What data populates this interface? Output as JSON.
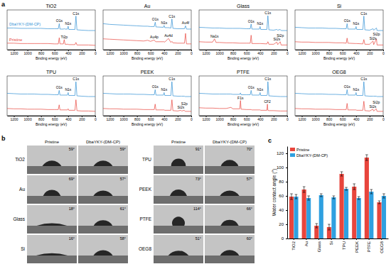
{
  "panel_labels": [
    "a",
    "b",
    "c"
  ],
  "chart_data": [
    {
      "type": "line",
      "title": "TiO2",
      "x_label": "Binding energy (eV)",
      "xlim": [
        1300,
        0
      ],
      "ylim": [
        0,
        110
      ],
      "xticks": [
        1200,
        1000,
        800,
        600,
        400,
        200,
        0
      ],
      "tick_labels": "x",
      "x": [
        1300,
        1200,
        1100,
        1000,
        900,
        800,
        700,
        600,
        545,
        531,
        520,
        470,
        458,
        445,
        410,
        400,
        390,
        300,
        285,
        270,
        200,
        100,
        0
      ],
      "series": [
        {
          "name": "DbaYKY-(DM-CP)",
          "color": "#2f8fd4",
          "values": [
            60,
            60,
            59,
            59,
            59,
            59,
            58,
            58,
            58,
            72,
            57,
            57,
            58,
            57,
            57,
            65,
            56,
            56,
            93,
            55,
            54,
            53,
            53
          ]
        },
        {
          "name": "Pristine",
          "color": "#e8453c",
          "values": [
            18,
            18,
            17,
            17,
            17,
            17,
            17,
            16,
            16,
            33,
            16,
            16,
            28,
            15,
            15,
            15,
            14,
            14,
            20,
            13,
            13,
            13,
            12
          ]
        }
      ],
      "annotations": [
        {
          "text": "O1s",
          "x": 531,
          "series": 0
        },
        {
          "text": "N1s",
          "x": 400,
          "series": 0
        },
        {
          "text": "C1s",
          "x": 285,
          "series": 0
        },
        {
          "text": "Ti2p",
          "x": 458,
          "series": 1
        }
      ]
    },
    {
      "type": "line",
      "title": "Au",
      "x_label": "Binding energy (eV)",
      "xlim": [
        1300,
        0
      ],
      "ylim": [
        0,
        110
      ],
      "xticks": [
        1200,
        1000,
        800,
        600,
        400,
        200,
        0
      ],
      "tick_labels": "x",
      "x": [
        1300,
        1200,
        1100,
        1000,
        900,
        800,
        700,
        645,
        600,
        546,
        531,
        520,
        410,
        400,
        390,
        353,
        335,
        300,
        285,
        270,
        200,
        100,
        84,
        70,
        0
      ],
      "series": [
        {
          "color": "#2f8fd4",
          "values": [
            72,
            70,
            69,
            68,
            67,
            66,
            65,
            65,
            64,
            64,
            76,
            63,
            62,
            67,
            61,
            61,
            61,
            60,
            85,
            59,
            58,
            58,
            66,
            57,
            57
          ]
        },
        {
          "color": "#e8453c",
          "values": [
            30,
            29,
            28,
            27,
            26,
            25,
            24,
            26,
            23,
            27,
            23,
            22,
            22,
            22,
            21,
            28,
            31,
            20,
            23,
            19,
            18,
            18,
            45,
            16,
            16
          ]
        }
      ],
      "annotations": [
        {
          "text": "O1s",
          "x": 531,
          "series": 0
        },
        {
          "text": "N1s",
          "x": 400,
          "series": 0
        },
        {
          "text": "C1s",
          "x": 285,
          "series": 0
        },
        {
          "text": "Au4f",
          "x": 84,
          "series": 0
        },
        {
          "text": "Au4p",
          "x": 546,
          "series": 1
        },
        {
          "text": "Au4d",
          "x": 335,
          "series": 1
        }
      ]
    },
    {
      "type": "line",
      "title": "Glass",
      "x_label": "Binding energy (eV)",
      "xlim": [
        1300,
        0
      ],
      "ylim": [
        0,
        110
      ],
      "xticks": [
        1200,
        1000,
        800,
        600,
        400,
        200,
        0
      ],
      "tick_labels": "x",
      "x": [
        1300,
        1200,
        1100,
        1072,
        1050,
        1000,
        900,
        800,
        700,
        600,
        545,
        532,
        520,
        410,
        400,
        390,
        300,
        285,
        270,
        200,
        153,
        140,
        103,
        90,
        0
      ],
      "series": [
        {
          "color": "#2f8fd4",
          "values": [
            62,
            61,
            60,
            60,
            60,
            60,
            59,
            59,
            59,
            58,
            58,
            71,
            57,
            57,
            64,
            56,
            56,
            94,
            55,
            54,
            56,
            54,
            56,
            53,
            53
          ]
        },
        {
          "color": "#e8453c",
          "values": [
            22,
            21,
            21,
            30,
            20,
            20,
            19,
            19,
            18,
            18,
            18,
            40,
            17,
            17,
            17,
            17,
            16,
            22,
            15,
            15,
            21,
            14,
            22,
            13,
            13
          ]
        }
      ],
      "annotations": [
        {
          "text": "O1s",
          "x": 532,
          "series": 0
        },
        {
          "text": "N1s",
          "x": 400,
          "series": 0
        },
        {
          "text": "C1s",
          "x": 285,
          "series": 0
        },
        {
          "text": "Na1s",
          "x": 1072,
          "series": 1
        },
        {
          "text": "Si2s",
          "x": 153,
          "series": 1
        },
        {
          "text": "Si2p",
          "x": 103,
          "series": 1
        }
      ]
    },
    {
      "type": "line",
      "title": "Si",
      "x_label": "Binding energy (eV)",
      "xlim": [
        1300,
        0
      ],
      "ylim": [
        0,
        110
      ],
      "xticks": [
        1200,
        1000,
        800,
        600,
        400,
        200,
        0
      ],
      "tick_labels": "x",
      "x": [
        1300,
        1200,
        1100,
        1000,
        900,
        800,
        700,
        600,
        545,
        532,
        520,
        410,
        400,
        390,
        300,
        285,
        270,
        200,
        150,
        140,
        99,
        90,
        0
      ],
      "series": [
        {
          "color": "#2f8fd4",
          "values": [
            62,
            61,
            60,
            60,
            60,
            59,
            59,
            58,
            58,
            72,
            57,
            57,
            64,
            56,
            56,
            93,
            55,
            54,
            58,
            54,
            60,
            53,
            53
          ]
        },
        {
          "color": "#e8453c",
          "values": [
            22,
            21,
            21,
            20,
            20,
            20,
            19,
            19,
            18,
            32,
            18,
            17,
            17,
            17,
            16,
            28,
            15,
            15,
            24,
            14,
            30,
            13,
            13
          ]
        }
      ],
      "annotations": [
        {
          "text": "O1s",
          "x": 532,
          "series": 0
        },
        {
          "text": "N1s",
          "x": 400,
          "series": 0
        },
        {
          "text": "C1s",
          "x": 285,
          "series": 0
        },
        {
          "text": "Si2s",
          "x": 150,
          "series": 1
        },
        {
          "text": "Si2p",
          "x": 99,
          "series": 1
        }
      ]
    },
    {
      "type": "line",
      "title": "TPU",
      "x_label": "Binding energy (eV)",
      "xlim": [
        1300,
        0
      ],
      "ylim": [
        0,
        110
      ],
      "xticks": [
        1200,
        1000,
        800,
        600,
        400,
        200,
        0
      ],
      "tick_labels": "x",
      "x": [
        1300,
        1200,
        1100,
        1000,
        900,
        800,
        700,
        600,
        545,
        532,
        520,
        410,
        400,
        390,
        300,
        285,
        270,
        200,
        100,
        0
      ],
      "series": [
        {
          "color": "#2f8fd4",
          "values": [
            62,
            61,
            60,
            60,
            60,
            59,
            59,
            58,
            58,
            70,
            57,
            57,
            64,
            56,
            56,
            94,
            55,
            54,
            53,
            53
          ]
        },
        {
          "color": "#e8453c",
          "values": [
            20,
            19,
            19,
            18,
            18,
            18,
            17,
            17,
            17,
            30,
            16,
            16,
            19,
            15,
            15,
            44,
            14,
            13,
            13,
            12
          ]
        }
      ],
      "annotations": [
        {
          "text": "O1s",
          "x": 532,
          "series": 0
        },
        {
          "text": "N1s",
          "x": 400,
          "series": 0
        },
        {
          "text": "C1s",
          "x": 285,
          "series": 0
        }
      ]
    },
    {
      "type": "line",
      "title": "PEEK",
      "x_label": "Binding energy (eV)",
      "xlim": [
        1300,
        0
      ],
      "ylim": [
        0,
        110
      ],
      "xticks": [
        1200,
        1000,
        800,
        600,
        400,
        200,
        0
      ],
      "tick_labels": "x",
      "x": [
        1300,
        1200,
        1100,
        1000,
        900,
        800,
        700,
        600,
        545,
        532,
        520,
        410,
        400,
        390,
        300,
        285,
        270,
        200,
        153,
        140,
        102,
        90,
        0
      ],
      "series": [
        {
          "color": "#2f8fd4",
          "values": [
            62,
            61,
            60,
            60,
            60,
            59,
            59,
            58,
            58,
            72,
            57,
            57,
            64,
            56,
            56,
            94,
            55,
            54,
            54,
            54,
            54,
            53,
            53
          ]
        },
        {
          "color": "#e8453c",
          "values": [
            20,
            19,
            19,
            18,
            18,
            18,
            17,
            17,
            17,
            32,
            16,
            16,
            16,
            15,
            15,
            44,
            14,
            13,
            15,
            13,
            15,
            12,
            12
          ]
        }
      ],
      "annotations": [
        {
          "text": "O1s",
          "x": 532,
          "series": 0
        },
        {
          "text": "N1s",
          "x": 400,
          "series": 0
        },
        {
          "text": "C1s",
          "x": 285,
          "series": 0
        },
        {
          "text": "Si2s",
          "x": 153,
          "series": 1
        },
        {
          "text": "S2p",
          "x": 102,
          "series": 1
        }
      ]
    },
    {
      "type": "line",
      "title": "PTFE",
      "x_label": "Binding energy (eV)",
      "xlim": [
        1300,
        0
      ],
      "ylim": [
        0,
        110
      ],
      "xticks": [
        1200,
        1000,
        800,
        600,
        400,
        200,
        0
      ],
      "tick_labels": "x",
      "x": [
        1300,
        1200,
        1100,
        1000,
        900,
        830,
        800,
        700,
        689,
        680,
        600,
        545,
        532,
        520,
        410,
        400,
        390,
        300,
        292,
        285,
        270,
        200,
        100,
        0
      ],
      "series": [
        {
          "color": "#2f8fd4",
          "values": [
            62,
            61,
            60,
            60,
            60,
            60,
            59,
            59,
            63,
            58,
            58,
            58,
            70,
            57,
            57,
            64,
            56,
            56,
            60,
            94,
            55,
            54,
            53,
            53
          ]
        },
        {
          "color": "#e8453c",
          "values": [
            22,
            21,
            21,
            20,
            20,
            23,
            19,
            19,
            42,
            18,
            17,
            17,
            17,
            16,
            16,
            16,
            15,
            15,
            32,
            15,
            14,
            14,
            13,
            13
          ]
        }
      ],
      "annotations": [
        {
          "text": "O1s",
          "x": 532,
          "series": 0
        },
        {
          "text": "N1s",
          "x": 400,
          "series": 0
        },
        {
          "text": "C1s",
          "x": 285,
          "series": 0
        },
        {
          "text": "F1s",
          "x": 689,
          "series": 1
        },
        {
          "text": "CF2",
          "x": 292,
          "series": 1
        }
      ]
    },
    {
      "type": "line",
      "title": "OEG8",
      "x_label": "Binding energy (eV)",
      "xlim": [
        1300,
        0
      ],
      "ylim": [
        0,
        110
      ],
      "xticks": [
        1200,
        1000,
        800,
        600,
        400,
        200,
        0
      ],
      "tick_labels": "x",
      "x": [
        1300,
        1200,
        1100,
        1000,
        900,
        800,
        700,
        600,
        545,
        532,
        520,
        410,
        400,
        390,
        300,
        285,
        270,
        200,
        153,
        140,
        102,
        90,
        0
      ],
      "series": [
        {
          "color": "#2f8fd4",
          "values": [
            62,
            61,
            60,
            60,
            60,
            59,
            59,
            58,
            58,
            72,
            57,
            57,
            64,
            56,
            56,
            94,
            55,
            54,
            54,
            54,
            54,
            53,
            53
          ]
        },
        {
          "color": "#e8453c",
          "values": [
            20,
            19,
            19,
            18,
            18,
            18,
            17,
            17,
            17,
            34,
            16,
            16,
            16,
            15,
            15,
            40,
            14,
            13,
            18,
            13,
            19,
            12,
            12
          ]
        }
      ],
      "annotations": [
        {
          "text": "O1s",
          "x": 532,
          "series": 0
        },
        {
          "text": "N1s",
          "x": 400,
          "series": 0
        },
        {
          "text": "C1s",
          "x": 285,
          "series": 0
        },
        {
          "text": "Si2s",
          "x": 153,
          "series": 1
        },
        {
          "text": "Si2p",
          "x": 102,
          "series": 1
        }
      ]
    },
    {
      "type": "bar",
      "y_label": "Water contact angle (°)",
      "categories": [
        "TiO2",
        "Au",
        "Glass",
        "Si",
        "TPU",
        "PEEK",
        "PTFE",
        "OEG8"
      ],
      "ylim": [
        0,
        130
      ],
      "yticks": [
        0,
        20,
        40,
        60,
        80,
        100,
        120
      ],
      "grid": false,
      "legend": "top-left",
      "series": [
        {
          "name": "Pristine",
          "color": "#e8453c",
          "values": [
            59,
            69,
            18,
            16,
            91,
            73,
            114,
            51
          ],
          "errors": [
            4,
            4,
            3,
            4,
            3,
            4,
            4,
            2
          ]
        },
        {
          "name": "DbaYKY-(DM-CP)",
          "color": "#2fa0e0",
          "values": [
            59,
            57,
            61,
            58,
            70,
            57,
            66,
            60
          ],
          "errors": [
            3,
            3,
            2,
            2,
            2,
            2,
            3,
            3
          ]
        }
      ]
    }
  ],
  "contact_angle_images": {
    "headers": [
      "Pristine",
      "DbaYKY-(DM-CP)"
    ],
    "rows": [
      {
        "material": "TiO2",
        "pristine": 59,
        "pristine_label": "59°",
        "coated": 59,
        "coated_label": "59°"
      },
      {
        "material": "Au",
        "pristine": 69,
        "pristine_label": "69°",
        "coated": 57,
        "coated_label": "57°"
      },
      {
        "material": "Glass",
        "pristine": 18,
        "pristine_label": "18°",
        "coated": 61,
        "coated_label": "61°"
      },
      {
        "material": "Si",
        "pristine": 16,
        "pristine_label": "16°",
        "coated": 58,
        "coated_label": "58°"
      },
      {
        "material": "TPU",
        "pristine": 91,
        "pristine_label": "91°",
        "coated": 70,
        "coated_label": "70°"
      },
      {
        "material": "PEEK",
        "pristine": 73,
        "pristine_label": "73°",
        "coated": 57,
        "coated_label": "57°"
      },
      {
        "material": "PTFE",
        "pristine": 114,
        "pristine_label": "114°",
        "coated": 66,
        "coated_label": "66°"
      },
      {
        "material": "OEG8",
        "pristine": 51,
        "pristine_label": "51°",
        "coated": 60,
        "coated_label": "60°"
      }
    ]
  }
}
